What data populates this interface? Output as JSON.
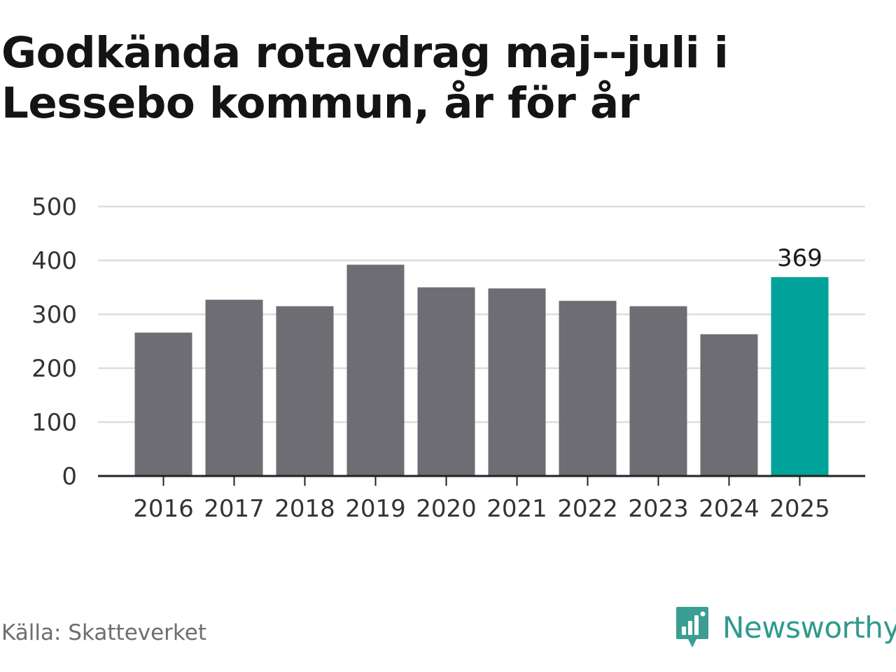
{
  "title": "Godkända rotavdrag maj--juli i Lessebo kommun, år för år",
  "source": "Källa: Skatteverket",
  "brand": {
    "name": "Newsworthy",
    "icon": "newsworthy-logo-icon",
    "color": "#2f9a8e"
  },
  "colors": {
    "bar": "#6e6d73",
    "highlight": "#00a39a",
    "grid": "#dddddd",
    "axis": "#222222"
  },
  "chart_data": {
    "type": "bar",
    "categories": [
      "2016",
      "2017",
      "2018",
      "2019",
      "2020",
      "2021",
      "2022",
      "2023",
      "2024",
      "2025"
    ],
    "values": [
      266,
      327,
      315,
      392,
      350,
      348,
      325,
      315,
      263,
      369
    ],
    "highlight_index": 9,
    "data_labels": [
      {
        "index": 9,
        "text": "369"
      }
    ],
    "yticks": [
      0,
      100,
      200,
      300,
      400,
      500
    ],
    "ylim": [
      0,
      500
    ],
    "grid": true,
    "legend": "none",
    "xlabel": "",
    "ylabel": ""
  }
}
